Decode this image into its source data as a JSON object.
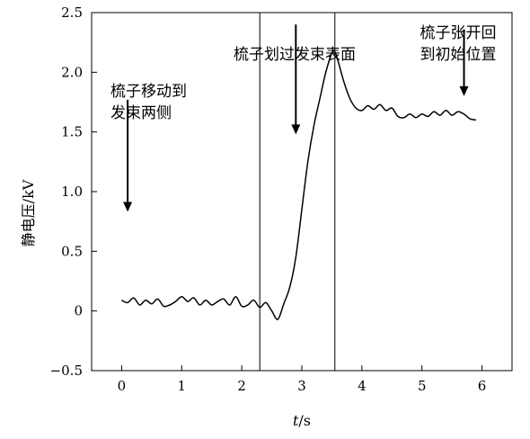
{
  "chart_data": {
    "type": "line",
    "title": "",
    "xlabel_italic": "t",
    "xlabel_unit": "/s",
    "ylabel": "静电压/kV",
    "xlim": [
      -0.5,
      6.5
    ],
    "ylim": [
      -0.5,
      2.5
    ],
    "xticks": [
      "0",
      "1",
      "2",
      "3",
      "4",
      "5",
      "6"
    ],
    "xtick_values": [
      0,
      1,
      2,
      3,
      4,
      5,
      6
    ],
    "yticks": [
      "−0.5",
      "0",
      "0.5",
      "1.0",
      "1.5",
      "2.0",
      "2.5"
    ],
    "ytick_values": [
      -0.5,
      0,
      0.5,
      1.0,
      1.5,
      2.0,
      2.5
    ],
    "grid": false,
    "series": [
      {
        "x": [
          0.0,
          0.1,
          0.2,
          0.3,
          0.4,
          0.5,
          0.6,
          0.7,
          0.8,
          0.9,
          1.0,
          1.1,
          1.2,
          1.3,
          1.4,
          1.5,
          1.6,
          1.7,
          1.8,
          1.9,
          2.0,
          2.1,
          2.2,
          2.3,
          2.4,
          2.5,
          2.6,
          2.7,
          2.8,
          2.9,
          3.0,
          3.1,
          3.2,
          3.3,
          3.4,
          3.5,
          3.55,
          3.6,
          3.7,
          3.8,
          3.9,
          4.0,
          4.1,
          4.2,
          4.3,
          4.4,
          4.5,
          4.6,
          4.7,
          4.8,
          4.9,
          5.0,
          5.1,
          5.2,
          5.3,
          5.4,
          5.5,
          5.6,
          5.7,
          5.8,
          5.9
        ],
        "y": [
          0.09,
          0.07,
          0.11,
          0.05,
          0.09,
          0.06,
          0.1,
          0.04,
          0.05,
          0.08,
          0.12,
          0.08,
          0.11,
          0.05,
          0.09,
          0.05,
          0.08,
          0.1,
          0.05,
          0.12,
          0.04,
          0.05,
          0.09,
          0.03,
          0.07,
          0.0,
          -0.07,
          0.06,
          0.2,
          0.45,
          0.85,
          1.25,
          1.55,
          1.78,
          2.0,
          2.16,
          2.17,
          2.1,
          1.92,
          1.78,
          1.7,
          1.68,
          1.72,
          1.69,
          1.73,
          1.68,
          1.7,
          1.63,
          1.62,
          1.65,
          1.62,
          1.65,
          1.63,
          1.67,
          1.64,
          1.68,
          1.64,
          1.67,
          1.65,
          1.61,
          1.6
        ]
      }
    ],
    "markers": [
      2.3,
      3.55
    ],
    "annotations": [
      {
        "lines": [
          "梳子移动到",
          "发束两侧"
        ],
        "arrow_x": 0.1,
        "arrow_from_y": 1.77,
        "arrow_to_y": 0.83
      },
      {
        "lines": [
          "梳子划过发束表面"
        ],
        "arrow_x": 2.9,
        "arrow_from_y": 2.4,
        "arrow_to_y": 1.48
      },
      {
        "lines": [
          "梳子张开回",
          "到初始位置"
        ],
        "arrow_x": 5.7,
        "arrow_from_y": 2.36,
        "arrow_to_y": 1.8
      }
    ]
  }
}
